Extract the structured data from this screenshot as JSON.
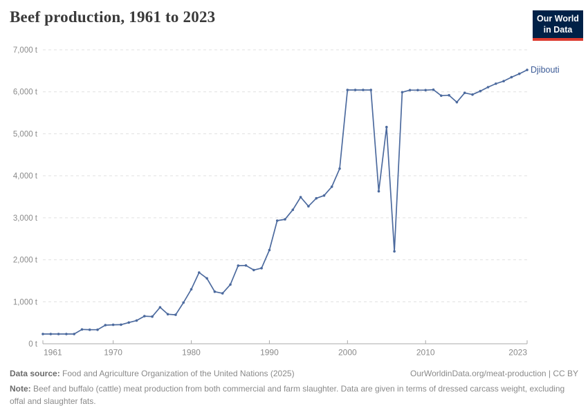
{
  "header": {
    "title": "Beef production, 1961 to 2023",
    "logo": {
      "line1": "Our World",
      "line2": "in Data",
      "bg_color": "#002147",
      "bar_color": "#dc3a2e"
    }
  },
  "chart_data": {
    "type": "line",
    "title": "Beef production, 1961 to 2023",
    "entity": "Djibouti",
    "unit": "t",
    "legend_position": "end-of-line label",
    "grid": "horizontal dashed",
    "ylim": [
      0,
      7000
    ],
    "yticks": [
      0,
      1000,
      2000,
      3000,
      4000,
      5000,
      6000,
      7000
    ],
    "ytick_labels": [
      "0 t",
      "1,000 t",
      "2,000 t",
      "3,000 t",
      "4,000 t",
      "5,000 t",
      "6,000 t",
      "7,000 t"
    ],
    "xticks": [
      1961,
      1970,
      1980,
      1990,
      2000,
      2010,
      2023
    ],
    "xtick_labels": [
      "1961",
      "1970",
      "1980",
      "1990",
      "2000",
      "2010",
      "2023"
    ],
    "x": [
      1961,
      1962,
      1963,
      1964,
      1965,
      1966,
      1967,
      1968,
      1969,
      1970,
      1971,
      1972,
      1973,
      1974,
      1975,
      1976,
      1977,
      1978,
      1979,
      1980,
      1981,
      1982,
      1983,
      1984,
      1985,
      1986,
      1987,
      1988,
      1989,
      1990,
      1991,
      1992,
      1993,
      1994,
      1995,
      1996,
      1997,
      1998,
      1999,
      2000,
      2001,
      2002,
      2003,
      2004,
      2005,
      2006,
      2007,
      2008,
      2009,
      2010,
      2011,
      2012,
      2013,
      2014,
      2015,
      2016,
      2017,
      2018,
      2019,
      2020,
      2021,
      2022,
      2023
    ],
    "values": [
      232,
      232,
      232,
      232,
      232,
      341,
      334,
      334,
      443,
      451,
      455,
      506,
      553,
      658,
      648,
      868,
      704,
      690,
      980,
      1296,
      1697,
      1558,
      1240,
      1200,
      1410,
      1860,
      1865,
      1755,
      1800,
      2230,
      2932,
      2963,
      3190,
      3492,
      3275,
      3464,
      3530,
      3740,
      4170,
      6043,
      6043,
      6043,
      6043,
      3630,
      5160,
      2200,
      5990,
      6040,
      6040,
      6040,
      6050,
      5908,
      5918,
      5753,
      5974,
      5934,
      6017,
      6111,
      6193,
      6254,
      6347,
      6429,
      6521
    ],
    "line_color": "#4c6a9e",
    "label_color": "#3d5c97",
    "gridline_color": "#e0e0e0",
    "axis_color": "#a8a8a8",
    "tick_label_color": "#8a8a8a"
  },
  "footer": {
    "datasource_label": "Data source:",
    "datasource_text": " Food and Agriculture Organization of the United Nations (2025)",
    "link_text": "OurWorldinData.org/meat-production | CC BY",
    "note_label": "Note:",
    "note_text": " Beef and buffalo (cattle) meat production from both commercial and farm slaughter. Data are given in terms of dressed carcass weight, excluding offal and slaughter fats."
  }
}
